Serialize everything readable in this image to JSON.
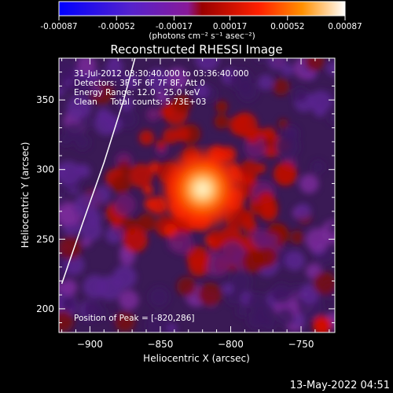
{
  "colorbar": {
    "tick_labels": [
      "-0.00087",
      "-0.00052",
      "-0.00017",
      "0.00017",
      "0.00052",
      "0.00087"
    ],
    "tick_values": [
      -0.00087,
      -0.00052,
      -0.00017,
      0.00017,
      0.00052,
      0.00087
    ],
    "range": [
      -0.00087,
      0.00087
    ],
    "units_label": "(photons cm⁻² s⁻¹ asec⁻²)"
  },
  "chart_data": {
    "type": "heatmap",
    "title": "Reconstructed RHESSI Image",
    "xlabel": "Heliocentric X (arcsec)",
    "ylabel": "Heliocentric Y (arcsec)",
    "xlim": [
      -922,
      -726
    ],
    "ylim": [
      183,
      380
    ],
    "x_ticks": [
      -900,
      -850,
      -800,
      -750
    ],
    "y_ticks": [
      200,
      250,
      300,
      350
    ],
    "x_tick_labels": [
      "−900",
      "−850",
      "−800",
      "−750"
    ],
    "y_tick_labels": [
      "200",
      "250",
      "300",
      "350"
    ],
    "peak": {
      "x": -820,
      "y": 286
    },
    "limb_arc": [
      [
        -920,
        218
      ],
      [
        -905,
        262
      ],
      [
        -890,
        305
      ],
      [
        -876,
        350
      ],
      [
        -868,
        380
      ]
    ]
  },
  "annotations": {
    "time_range": "31-Jul-2012 03:30:40.000 to 03:36:40.000",
    "detectors": "Detectors: 3F 5F 6F 7F 8F, Att 0",
    "energy": "Energy Range: 12.0 - 25.0 keV",
    "clean": "Clean     Total counts: 5.73E+03",
    "peak_label": "Position of Peak = [-820,286]"
  },
  "footer": {
    "date": "13-May-2022 04:51"
  }
}
